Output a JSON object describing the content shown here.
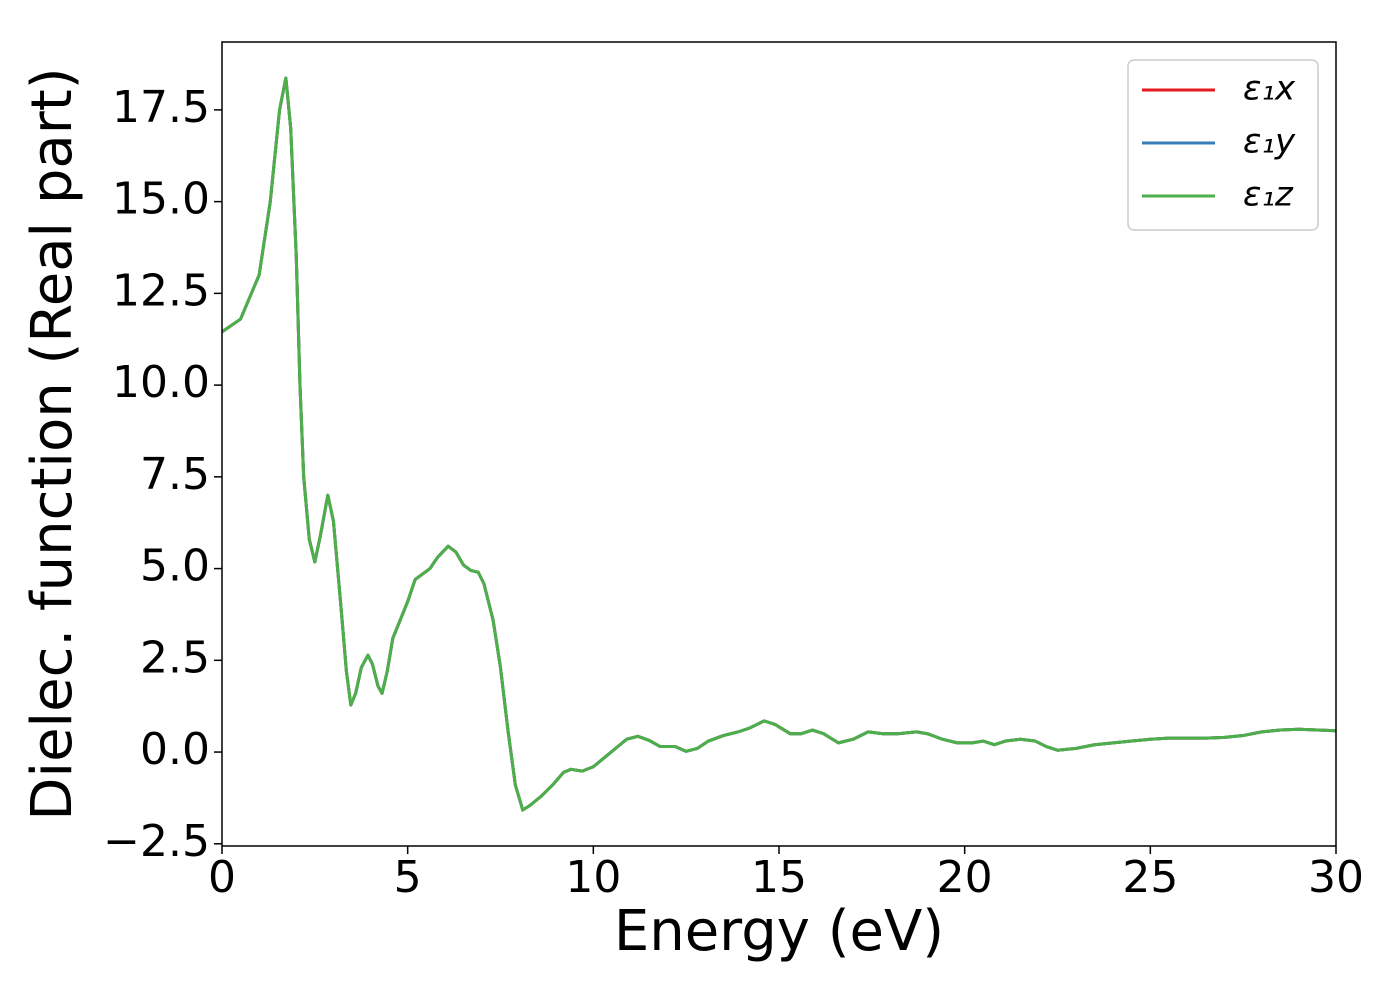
{
  "chart_data": {
    "type": "line",
    "xlabel": "Energy (eV)",
    "ylabel": "Dielec. function (Real part)",
    "x": [
      0,
      0.5,
      1.0,
      1.3,
      1.55,
      1.72,
      1.85,
      2.0,
      2.1,
      2.2,
      2.35,
      2.5,
      2.65,
      2.85,
      3.0,
      3.2,
      3.35,
      3.47,
      3.6,
      3.75,
      3.93,
      4.05,
      4.2,
      4.31,
      4.45,
      4.6,
      4.8,
      5.0,
      5.2,
      5.4,
      5.6,
      5.8,
      6.09,
      6.3,
      6.5,
      6.7,
      6.9,
      7.05,
      7.3,
      7.5,
      7.7,
      7.9,
      8.1,
      8.3,
      8.6,
      8.9,
      9.2,
      9.4,
      9.7,
      10.0,
      10.3,
      10.6,
      10.9,
      11.2,
      11.5,
      11.8,
      12.2,
      12.5,
      12.8,
      13.1,
      13.5,
      13.9,
      14.2,
      14.6,
      14.9,
      15.3,
      15.6,
      15.9,
      16.2,
      16.6,
      17.0,
      17.4,
      17.8,
      18.2,
      18.7,
      19.0,
      19.4,
      19.8,
      20.2,
      20.5,
      20.8,
      21.1,
      21.5,
      21.9,
      22.2,
      22.5,
      23.0,
      23.5,
      24.0,
      24.5,
      25.0,
      25.5,
      26.0,
      26.5,
      27.0,
      27.5,
      28.0,
      28.5,
      29.0,
      29.5,
      30.0
    ],
    "series": [
      {
        "name": "ε₁x",
        "color": "#e41a1c",
        "values": [
          11.45,
          11.8,
          13.0,
          15.0,
          17.5,
          18.37,
          17.0,
          13.5,
          10.0,
          7.5,
          5.8,
          5.18,
          5.9,
          7.0,
          6.3,
          4.0,
          2.2,
          1.28,
          1.6,
          2.3,
          2.64,
          2.4,
          1.8,
          1.6,
          2.2,
          3.1,
          3.6,
          4.1,
          4.7,
          4.85,
          5.0,
          5.3,
          5.61,
          5.45,
          5.1,
          4.95,
          4.9,
          4.6,
          3.6,
          2.3,
          0.6,
          -0.9,
          -1.58,
          -1.45,
          -1.2,
          -0.9,
          -0.55,
          -0.47,
          -0.52,
          -0.4,
          -0.15,
          0.1,
          0.35,
          0.43,
          0.32,
          0.15,
          0.15,
          0.02,
          0.1,
          0.3,
          0.45,
          0.55,
          0.65,
          0.85,
          0.75,
          0.5,
          0.5,
          0.6,
          0.5,
          0.25,
          0.35,
          0.55,
          0.5,
          0.5,
          0.55,
          0.5,
          0.35,
          0.25,
          0.25,
          0.3,
          0.2,
          0.3,
          0.35,
          0.3,
          0.15,
          0.05,
          0.1,
          0.2,
          0.25,
          0.3,
          0.35,
          0.38,
          0.38,
          0.38,
          0.4,
          0.45,
          0.55,
          0.6,
          0.62,
          0.6,
          0.58
        ]
      },
      {
        "name": "ε₁y",
        "color": "#377eb8",
        "values": [
          11.45,
          11.8,
          13.0,
          15.0,
          17.5,
          18.37,
          17.0,
          13.5,
          10.0,
          7.5,
          5.8,
          5.18,
          5.9,
          7.0,
          6.3,
          4.0,
          2.2,
          1.28,
          1.6,
          2.3,
          2.64,
          2.4,
          1.8,
          1.6,
          2.2,
          3.1,
          3.6,
          4.1,
          4.7,
          4.85,
          5.0,
          5.3,
          5.61,
          5.45,
          5.1,
          4.95,
          4.9,
          4.6,
          3.6,
          2.3,
          0.6,
          -0.9,
          -1.58,
          -1.45,
          -1.2,
          -0.9,
          -0.55,
          -0.47,
          -0.52,
          -0.4,
          -0.15,
          0.1,
          0.35,
          0.43,
          0.32,
          0.15,
          0.15,
          0.02,
          0.1,
          0.3,
          0.45,
          0.55,
          0.65,
          0.85,
          0.75,
          0.5,
          0.5,
          0.6,
          0.5,
          0.25,
          0.35,
          0.55,
          0.5,
          0.5,
          0.55,
          0.5,
          0.35,
          0.25,
          0.25,
          0.3,
          0.2,
          0.3,
          0.35,
          0.3,
          0.15,
          0.05,
          0.1,
          0.2,
          0.25,
          0.3,
          0.35,
          0.38,
          0.38,
          0.38,
          0.4,
          0.45,
          0.55,
          0.6,
          0.62,
          0.6,
          0.58
        ]
      },
      {
        "name": "ε₁z",
        "color": "#4daf4a",
        "values": [
          11.45,
          11.8,
          13.0,
          15.0,
          17.5,
          18.37,
          17.0,
          13.5,
          10.0,
          7.5,
          5.8,
          5.18,
          5.9,
          7.0,
          6.3,
          4.0,
          2.2,
          1.28,
          1.6,
          2.3,
          2.64,
          2.4,
          1.8,
          1.6,
          2.2,
          3.1,
          3.6,
          4.1,
          4.7,
          4.85,
          5.0,
          5.3,
          5.61,
          5.45,
          5.1,
          4.95,
          4.9,
          4.6,
          3.6,
          2.3,
          0.6,
          -0.9,
          -1.58,
          -1.45,
          -1.2,
          -0.9,
          -0.55,
          -0.47,
          -0.52,
          -0.4,
          -0.15,
          0.1,
          0.35,
          0.43,
          0.32,
          0.15,
          0.15,
          0.02,
          0.1,
          0.3,
          0.45,
          0.55,
          0.65,
          0.85,
          0.75,
          0.5,
          0.5,
          0.6,
          0.5,
          0.25,
          0.35,
          0.55,
          0.5,
          0.5,
          0.55,
          0.5,
          0.35,
          0.25,
          0.25,
          0.3,
          0.2,
          0.3,
          0.35,
          0.3,
          0.15,
          0.05,
          0.1,
          0.2,
          0.25,
          0.3,
          0.35,
          0.38,
          0.38,
          0.38,
          0.4,
          0.45,
          0.55,
          0.6,
          0.62,
          0.6,
          0.58
        ]
      }
    ],
    "xlim": [
      0,
      30
    ],
    "xticks": [
      0,
      5,
      10,
      15,
      20,
      25,
      30
    ],
    "ylim": [
      -2.56,
      19.35
    ],
    "yticks": [
      {
        "value": -2.5,
        "label": "−2.5"
      },
      {
        "value": 0,
        "label": "0.0"
      },
      2.5,
      {
        "value": 5,
        "label": "5.0"
      },
      7.5,
      {
        "value": 10,
        "label": "10.0"
      },
      12.5,
      {
        "value": 15,
        "label": "15.0"
      },
      17.5
    ],
    "legend": "upper right",
    "grid": false
  }
}
